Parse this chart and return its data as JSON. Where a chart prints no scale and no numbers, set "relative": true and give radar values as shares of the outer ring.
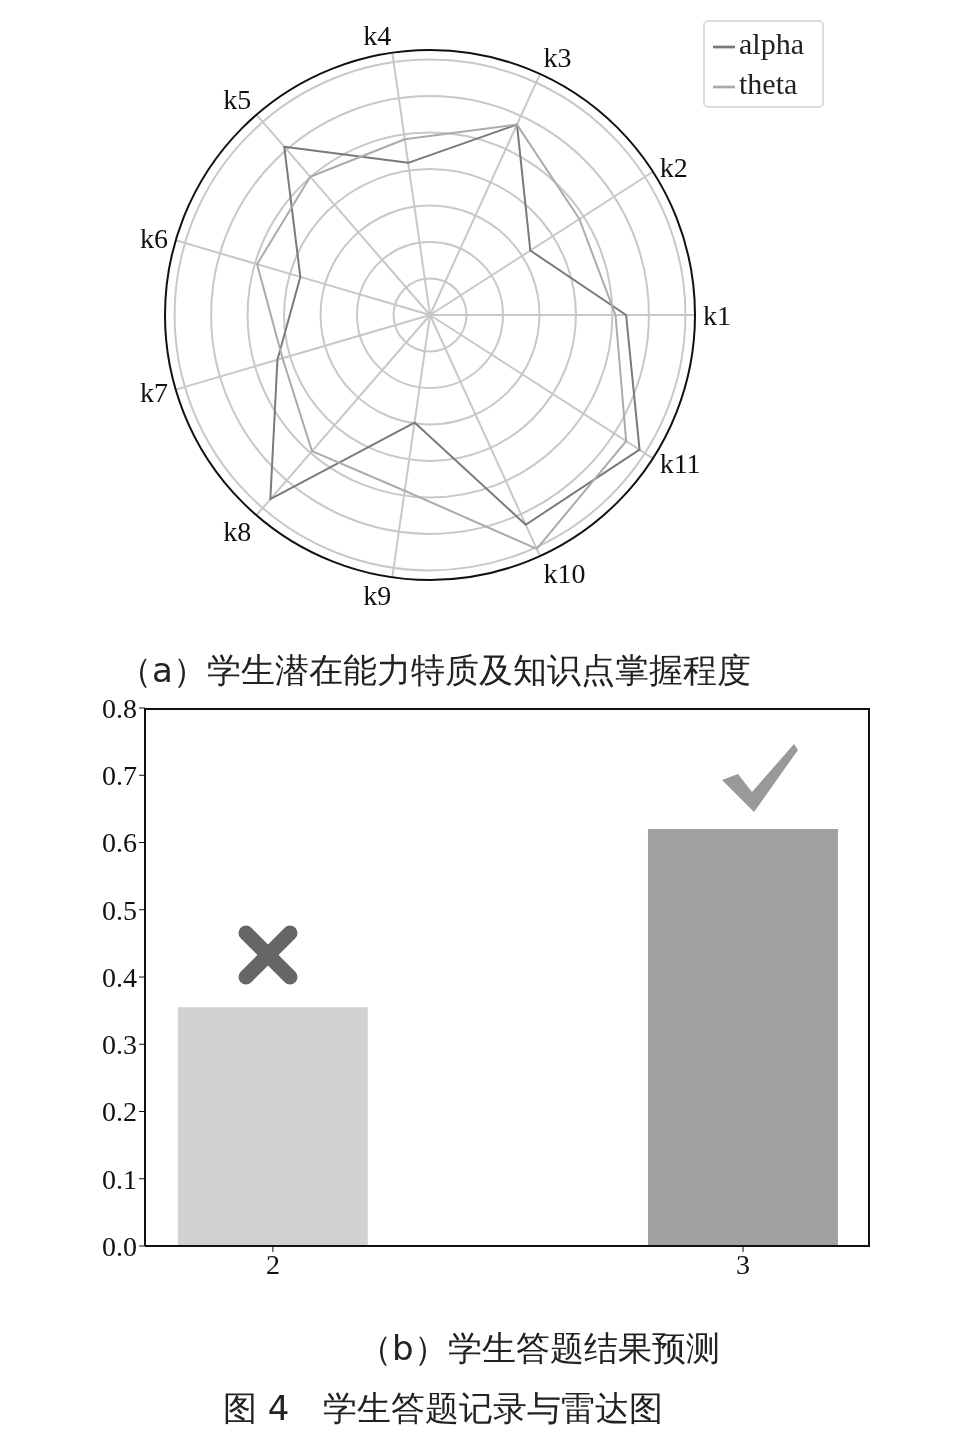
{
  "chart_data": [
    {
      "type": "radar",
      "title": "（a）学生潜在能力特质及知识点掌握程度",
      "categories": [
        "k3",
        "k2",
        "k1",
        "k11",
        "k10",
        "k9",
        "k8",
        "k7",
        "k6",
        "k5",
        "k4"
      ],
      "relative": true,
      "grid": true,
      "legend": "top right",
      "series": [
        {
          "name": "alpha",
          "color": "#7a7a7a",
          "values": [
            0.79,
            0.45,
            0.74,
            0.94,
            0.87,
            0.41,
            0.92,
            0.6,
            0.51,
            0.84,
            0.58
          ]
        },
        {
          "name": "theta",
          "color": "#ababab",
          "values": [
            0.79,
            0.67,
            0.7,
            0.88,
            0.97,
            0.67,
            0.68,
            0.58,
            0.68,
            0.69,
            0.67
          ]
        }
      ]
    },
    {
      "type": "bar",
      "title": "（b）学生答题结果预测",
      "categories": [
        "2",
        "3"
      ],
      "values": [
        0.355,
        0.62
      ],
      "colors": [
        "#d0d1d3",
        "#a0a1a3"
      ],
      "ylim": [
        0,
        0.8
      ],
      "yticks": [
        {
          "value": 0,
          "label": "0.0"
        },
        0.1,
        0.2,
        0.3,
        0.4,
        0.5,
        0.6,
        0.7,
        0.8
      ],
      "annotations": [
        "图 4　学生答题记录与雷达图"
      ]
    }
  ]
}
